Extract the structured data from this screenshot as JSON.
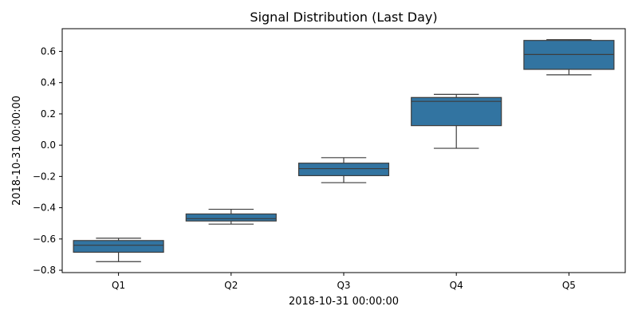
{
  "chart_data": {
    "type": "box",
    "title": "Signal Distribution (Last Day)",
    "xlabel": "2018-10-31 00:00:00",
    "ylabel": "2018-10-31 00:00:00",
    "categories": [
      "Q1",
      "Q2",
      "Q3",
      "Q4",
      "Q5"
    ],
    "ylim": [
      -0.815,
      0.745
    ],
    "yticks": [
      -0.8,
      -0.6,
      -0.4,
      -0.2,
      0.0,
      0.2,
      0.4,
      0.6
    ],
    "ytick_labels": [
      "−0.8",
      "−0.6",
      "−0.4",
      "−0.2",
      "0.0",
      "0.2",
      "0.4",
      "0.6"
    ],
    "box_color": "#3274a1",
    "line_color": "#3d3d3d",
    "grid": false,
    "boxes": [
      {
        "name": "Q1",
        "whisker_low": -0.745,
        "q1": -0.685,
        "median": -0.64,
        "q3": -0.61,
        "whisker_high": -0.595
      },
      {
        "name": "Q2",
        "whisker_low": -0.505,
        "q1": -0.485,
        "median": -0.47,
        "q3": -0.44,
        "whisker_high": -0.41
      },
      {
        "name": "Q3",
        "whisker_low": -0.24,
        "q1": -0.195,
        "median": -0.15,
        "q3": -0.115,
        "whisker_high": -0.08
      },
      {
        "name": "Q4",
        "whisker_low": -0.02,
        "q1": 0.125,
        "median": 0.28,
        "q3": 0.305,
        "whisker_high": 0.325
      },
      {
        "name": "Q5",
        "whisker_low": 0.45,
        "q1": 0.485,
        "median": 0.58,
        "q3": 0.67,
        "whisker_high": 0.675
      }
    ]
  }
}
